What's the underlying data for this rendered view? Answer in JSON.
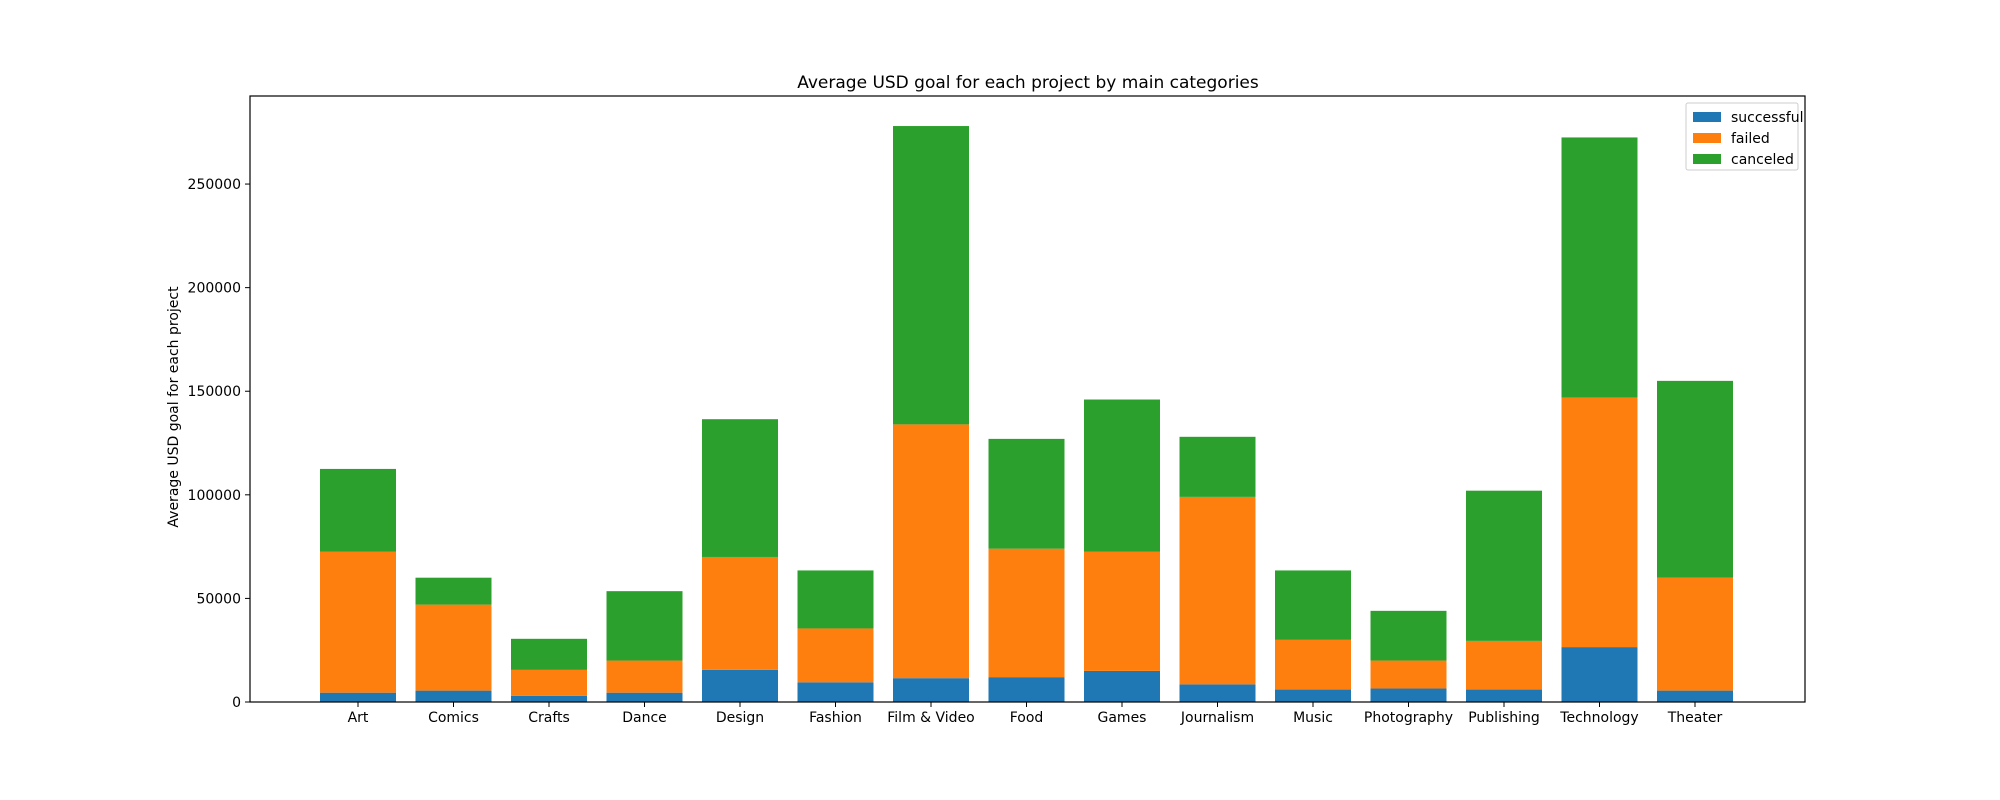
{
  "chart_data": {
    "type": "bar",
    "stacked": true,
    "title": "Average USD goal for each project by main categories",
    "xlabel": "",
    "ylabel": "Average USD goal for each project",
    "categories": [
      "Art",
      "Comics",
      "Crafts",
      "Dance",
      "Design",
      "Fashion",
      "Film & Video",
      "Food",
      "Games",
      "Journalism",
      "Music",
      "Photography",
      "Publishing",
      "Technology",
      "Theater"
    ],
    "series": [
      {
        "name": "successful",
        "color": "#1f77b4",
        "values": [
          4500,
          5500,
          3000,
          4500,
          15500,
          9500,
          11500,
          12000,
          15000,
          8500,
          6000,
          6500,
          6000,
          26500,
          5500
        ]
      },
      {
        "name": "failed",
        "color": "#ff7f0e",
        "values": [
          68000,
          41500,
          12500,
          15500,
          54500,
          26000,
          122500,
          62000,
          57500,
          90500,
          24000,
          13500,
          23500,
          120500,
          54500
        ]
      },
      {
        "name": "canceled",
        "color": "#2ca02c",
        "values": [
          40000,
          13000,
          15000,
          33500,
          66500,
          28000,
          144000,
          53000,
          73500,
          29000,
          33500,
          24000,
          72500,
          125500,
          95000
        ]
      }
    ],
    "yticks": [
      0,
      50000,
      100000,
      150000,
      200000,
      250000
    ],
    "ylim": [
      0,
      292500
    ],
    "grid": false,
    "legend": "top-right"
  }
}
